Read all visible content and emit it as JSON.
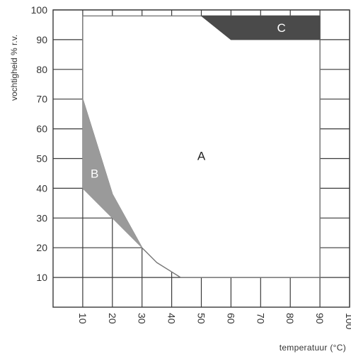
{
  "chart_data": {
    "type": "area",
    "title": "",
    "xlabel": "temperatuur (°C)",
    "ylabel": "vochtigheid % r.v.",
    "xlim": [
      0,
      100
    ],
    "ylim": [
      0,
      100
    ],
    "x_ticks": [
      "10",
      "20",
      "30",
      "40",
      "50",
      "60",
      "70",
      "80",
      "90",
      "100"
    ],
    "y_ticks": [
      "10",
      "20",
      "30",
      "40",
      "50",
      "60",
      "70",
      "80",
      "90",
      "100"
    ],
    "grid": true,
    "regions": [
      {
        "name": "A",
        "color": "#ffffff",
        "label_at": [
          50,
          51
        ],
        "points": [
          [
            10,
            98
          ],
          [
            90,
            98
          ],
          [
            90,
            10
          ],
          [
            43,
            10
          ],
          [
            35,
            15
          ],
          [
            30,
            20
          ],
          [
            20,
            38
          ],
          [
            10,
            70
          ]
        ]
      },
      {
        "name": "B",
        "color": "#9a9a9a",
        "label_at": [
          14,
          45
        ],
        "points": [
          [
            10,
            70
          ],
          [
            20,
            38
          ],
          [
            30,
            20
          ],
          [
            10,
            40
          ]
        ]
      },
      {
        "name": "C",
        "color": "#4a4a4a",
        "label_at": [
          77,
          94
        ],
        "points": [
          [
            50,
            98
          ],
          [
            90,
            98
          ],
          [
            90,
            90
          ],
          [
            60,
            90
          ]
        ]
      }
    ]
  }
}
